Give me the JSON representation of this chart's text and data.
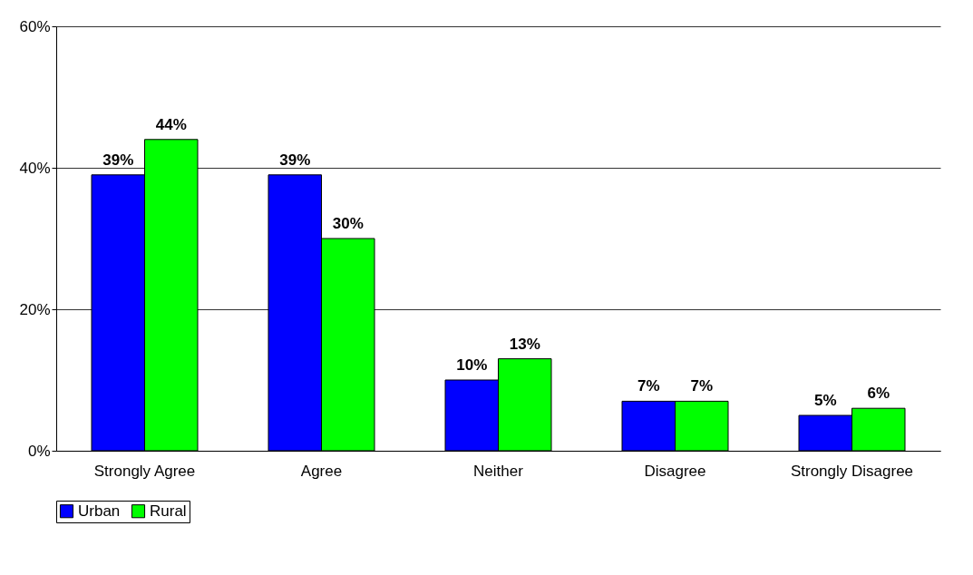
{
  "chart_data": {
    "type": "bar",
    "categories": [
      "Strongly Agree",
      "Agree",
      "Neither",
      "Disagree",
      "Strongly Disagree"
    ],
    "series": [
      {
        "name": "Urban",
        "color": "#0000ff",
        "values": [
          39,
          39,
          10,
          7,
          5
        ],
        "value_labels": [
          "39%",
          "39%",
          "10%",
          "7%",
          "5%"
        ]
      },
      {
        "name": "Rural",
        "color": "#00ff00",
        "values": [
          44,
          30,
          13,
          7,
          6
        ],
        "value_labels": [
          "44%",
          "30%",
          "13%",
          "7%",
          "6%"
        ]
      }
    ],
    "ylim": [
      0,
      60
    ],
    "yticks": [
      {
        "value": 0,
        "label": "0%"
      },
      {
        "value": 20,
        "label": "20%"
      },
      {
        "value": 40,
        "label": "40%"
      },
      {
        "value": 60,
        "label": "60%"
      }
    ],
    "grid": "y",
    "legend": "bottom"
  }
}
